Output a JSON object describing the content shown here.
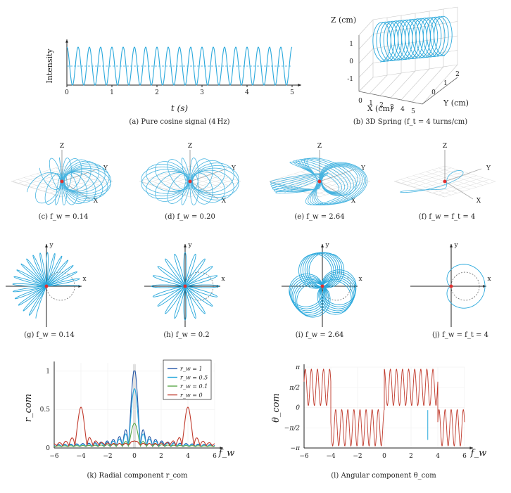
{
  "captions": {
    "a": "(a) Pure cosine signal (4 Hz)",
    "b": "(b) 3D Spring (f_t = 4 turns/cm)",
    "c": "(c) f_w = 0.14",
    "d": "(d) f_w = 0.20",
    "e": "(e) f_w = 2.64",
    "f": "(f) f_w = f_t = 4",
    "g": "(g) f_w = 0.14",
    "h": "(h) f_w = 0.2",
    "i": "(i) f_w = 2.64",
    "j": "(j) f_w = f_t = 4",
    "k": "(k) Radial component r_com",
    "l": "(l) Angular component θ_com"
  },
  "axis_text": {
    "a_ylabel": "Intensity",
    "a_xlabel": "t (s)",
    "b_z": "Z (cm)",
    "b_x": "X (cm)",
    "b_y": "Y (cm)",
    "X": "X",
    "Y": "Y",
    "Z": "Z",
    "x": "x",
    "y": "y",
    "k_ylabel": "r_com",
    "k_xlabel": "f_w",
    "l_ylabel": "θ_com",
    "l_xlabel": "f_w"
  },
  "colors": {
    "signal": "#29a8dc",
    "spring": "#29a8dc",
    "center_dot": "#e03030",
    "r_w_1": "#2456a8",
    "r_w_05": "#29a8dc",
    "r_w_01": "#5aa84a",
    "r_w_0": "#c0392b"
  },
  "chart_data": [
    {
      "id": "a",
      "type": "line",
      "xlabel": "t (s)",
      "ylabel": "Intensity",
      "xlim": [
        0,
        5
      ],
      "xticks": [
        0,
        1,
        2,
        3,
        4,
        5
      ],
      "series": [
        {
          "frequency_hz": 4,
          "shape": "cosine"
        }
      ]
    },
    {
      "id": "b",
      "type": "line",
      "xlabel": "X (cm)",
      "ylabel": "Y (cm)",
      "zlabel": "Z (cm)",
      "xticks": [
        0,
        1,
        2,
        3,
        4,
        5
      ],
      "yticks": [
        0,
        1,
        2
      ],
      "zticks": [
        -1,
        0,
        1
      ],
      "turns_per_cm": 4
    },
    {
      "id": "k",
      "type": "line",
      "xlabel": "f_w",
      "ylabel": "r_com",
      "xlim": [
        -6,
        6
      ],
      "ylim": [
        0,
        1.05
      ],
      "xticks": [
        -6,
        -4,
        -2,
        0,
        2,
        4,
        6
      ],
      "yticks": [
        0,
        0.5,
        1
      ],
      "legend_position": "top-right",
      "series": [
        {
          "name": "r_w = 1",
          "peaks": [
            [
              0,
              1.0
            ]
          ]
        },
        {
          "name": "r_w = 0.5",
          "peaks": [
            [
              0,
              0.75
            ]
          ]
        },
        {
          "name": "r_w = 0.1",
          "peaks": [
            [
              0,
              0.3
            ]
          ]
        },
        {
          "name": "r_w = 0",
          "peaks": [
            [
              -4,
              0.5
            ],
            [
              0,
              0.05
            ],
            [
              4,
              0.5
            ]
          ]
        }
      ]
    },
    {
      "id": "l",
      "type": "line",
      "xlabel": "f_w",
      "ylabel": "θ_com",
      "xlim": [
        -6,
        6
      ],
      "xticks": [
        -6,
        -4,
        -2,
        0,
        2,
        4,
        6
      ],
      "yticks": [
        "−π",
        "−π/2",
        "0",
        "π/2",
        "π"
      ]
    }
  ]
}
